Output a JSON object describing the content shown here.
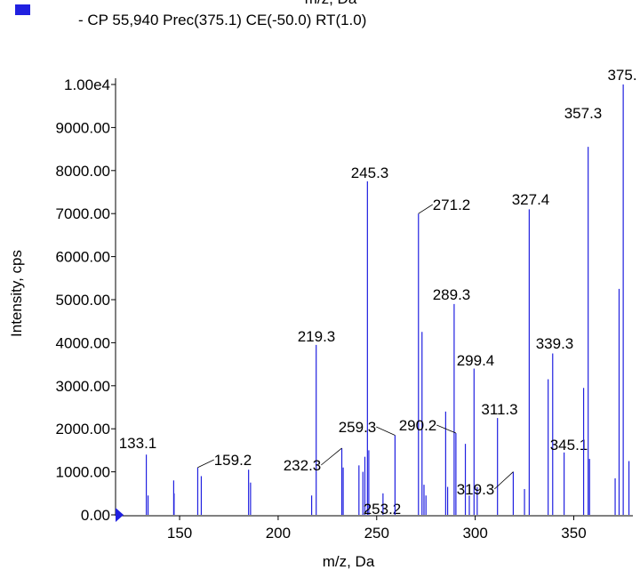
{
  "chart_data": {
    "type": "spectrum",
    "top_label": "m/z, Da",
    "series_name": "- CP 55,940 Prec(375.1) CE(-50.0) RT(1.0)",
    "color": "#2020e0",
    "xlabel": "m/z, Da",
    "ylabel": "Intensity, cps",
    "xlim": [
      117.5,
      380
    ],
    "ylim": [
      0,
      10000
    ],
    "xticks": [
      150,
      200,
      250,
      300,
      350
    ],
    "yticks": [
      {
        "value": 0,
        "label": "0.00"
      },
      {
        "value": 1000,
        "label": "1000.00"
      },
      {
        "value": 2000,
        "label": "2000.00"
      },
      {
        "value": 3000,
        "label": "3000.00"
      },
      {
        "value": 4000,
        "label": "4000.00"
      },
      {
        "value": 5000,
        "label": "5000.00"
      },
      {
        "value": 6000,
        "label": "6000.00"
      },
      {
        "value": 7000,
        "label": "7000.00"
      },
      {
        "value": 8000,
        "label": "8000.00"
      },
      {
        "value": 9000,
        "label": "9000.00"
      },
      {
        "value": 10000,
        "label": "1.00e4"
      }
    ],
    "x": [
      133.1,
      134,
      147,
      147.2,
      159.2,
      161,
      185,
      186,
      217,
      219.3,
      232.3,
      233,
      241,
      243,
      244,
      245.3,
      246,
      253.2,
      259.3,
      271.2,
      273,
      274,
      275,
      285,
      286,
      289.3,
      290.2,
      295,
      297,
      299.4,
      301,
      311.3,
      319.3,
      325,
      327.4,
      337,
      339.3,
      345.1,
      355,
      357.3,
      358,
      371,
      373,
      375.1,
      378
    ],
    "values": [
      1400,
      450,
      800,
      500,
      1100,
      900,
      1050,
      750,
      450,
      3950,
      1550,
      1100,
      1150,
      1000,
      1350,
      7750,
      1500,
      500,
      1850,
      7000,
      4250,
      700,
      450,
      2400,
      650,
      4900,
      1900,
      1650,
      450,
      3400,
      650,
      2250,
      1000,
      600,
      7100,
      3150,
      3750,
      1450,
      2950,
      8550,
      1300,
      850,
      5250,
      10000,
      1250
    ],
    "labels": [
      "133.1",
      null,
      null,
      null,
      "159.2",
      null,
      null,
      null,
      null,
      "219.3",
      "232.3",
      null,
      null,
      null,
      null,
      "245.3",
      null,
      "253.2",
      "259.3",
      "271.2",
      null,
      null,
      null,
      null,
      null,
      "289.3",
      "290.2",
      null,
      null,
      "299.4",
      null,
      "311.3",
      "319.3",
      null,
      "327.4",
      null,
      "339.3",
      "345.1",
      null,
      "357.3",
      null,
      null,
      null,
      "375.",
      null
    ]
  }
}
